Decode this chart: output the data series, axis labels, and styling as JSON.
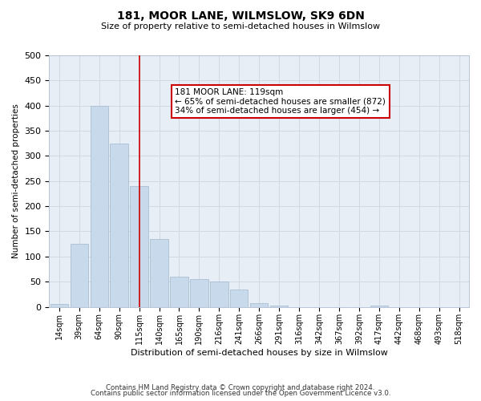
{
  "title": "181, MOOR LANE, WILMSLOW, SK9 6DN",
  "subtitle": "Size of property relative to semi-detached houses in Wilmslow",
  "xlabel": "Distribution of semi-detached houses by size in Wilmslow",
  "ylabel": "Number of semi-detached properties",
  "bar_color": "#c9d9ec",
  "bar_edge_color": "#a0b8d0",
  "vline_color": "#cc0000",
  "vline_x": 4,
  "annotation_text": "181 MOOR LANE: 119sqm\n← 65% of semi-detached houses are smaller (872)\n34% of semi-detached houses are larger (454) →",
  "annotation_box_color": "#ffffff",
  "annotation_box_edge": "#cc0000",
  "grid_color": "#d0d8e4",
  "background_color": "#e8eef5",
  "categories": [
    "14sqm",
    "39sqm",
    "64sqm",
    "90sqm",
    "115sqm",
    "140sqm",
    "165sqm",
    "190sqm",
    "216sqm",
    "241sqm",
    "266sqm",
    "291sqm",
    "316sqm",
    "342sqm",
    "367sqm",
    "392sqm",
    "417sqm",
    "442sqm",
    "468sqm",
    "493sqm",
    "518sqm"
  ],
  "bin_indices": [
    0,
    1,
    2,
    3,
    4,
    5,
    6,
    7,
    8,
    9,
    10,
    11,
    12,
    13,
    14,
    15,
    16,
    17,
    18,
    19,
    20
  ],
  "values": [
    5,
    125,
    400,
    325,
    240,
    135,
    60,
    55,
    50,
    35,
    8,
    2,
    0,
    0,
    0,
    0,
    2,
    0,
    0,
    0,
    0
  ],
  "ylim": [
    0,
    500
  ],
  "yticks": [
    0,
    50,
    100,
    150,
    200,
    250,
    300,
    350,
    400,
    450,
    500
  ],
  "footer1": "Contains HM Land Registry data © Crown copyright and database right 2024.",
  "footer2": "Contains public sector information licensed under the Open Government Licence v3.0."
}
